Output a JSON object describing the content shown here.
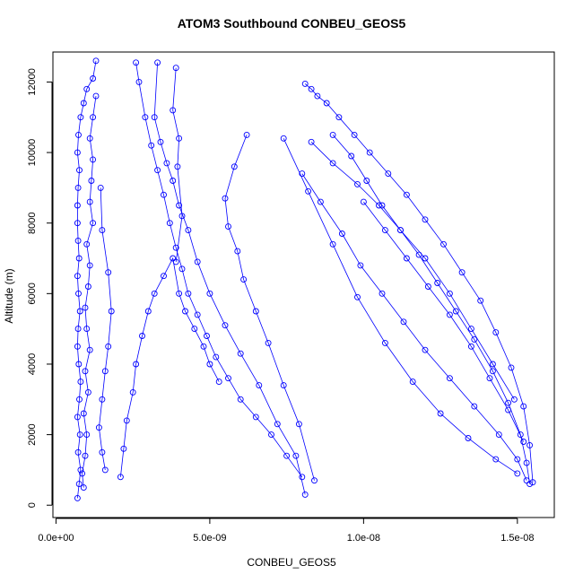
{
  "chart_data": {
    "type": "line",
    "title": "ATOM3 Southbound CONBEU_GEOS5",
    "xlabel": "CONBEU_GEOS5",
    "ylabel": "Altitude (m)",
    "xlim": [
      -1e-10,
      1.62e-08
    ],
    "ylim": [
      -350,
      12850
    ],
    "x_ticks": [
      0,
      5e-09,
      1e-08,
      1.5e-08
    ],
    "x_tick_labels": [
      "0.0e+00",
      "5.0e-09",
      "1.0e-08",
      "1.5e-08"
    ],
    "y_ticks": [
      0,
      2000,
      4000,
      6000,
      8000,
      10000,
      12000
    ],
    "y_tick_labels": [
      "0",
      "2000",
      "4000",
      "6000",
      "8000",
      "10000",
      "12000"
    ],
    "line_color": "#0000ff",
    "marker": "open-circle",
    "series": [
      {
        "x": [
          7e-10,
          7.5e-10,
          8e-10,
          7.2e-10,
          7.8e-10,
          7e-10,
          7.6e-10,
          8e-10,
          7.4e-10,
          7e-10,
          7.2e-10,
          7.8e-10,
          7.3e-10,
          7e-10,
          7.5e-10,
          7.2e-10,
          7e-10,
          7e-10,
          7.2e-10,
          7.6e-10,
          7e-10,
          7.3e-10,
          8e-10,
          9e-10,
          1e-09,
          1.2e-09,
          1.3e-09
        ],
        "y": [
          200,
          600,
          1000,
          1500,
          2000,
          2500,
          3000,
          3500,
          4000,
          4500,
          5000,
          5500,
          6000,
          6500,
          7000,
          7500,
          8000,
          8500,
          9000,
          9500,
          10000,
          10500,
          11000,
          11400,
          11800,
          12100,
          12600
        ]
      },
      {
        "x": [
          9e-10,
          8.5e-10,
          9.5e-10,
          1e-09,
          9e-10,
          1.05e-09,
          9.5e-10,
          1.1e-09,
          1e-09,
          9.5e-10,
          1.05e-09,
          1.1e-09,
          1e-09,
          1.2e-09,
          1.1e-09,
          1.15e-09,
          1.2e-09,
          1.1e-09,
          1.2e-09,
          1.3e-09
        ],
        "y": [
          500,
          900,
          1400,
          2000,
          2600,
          3200,
          3800,
          4400,
          5000,
          5600,
          6200,
          6800,
          7400,
          8000,
          8600,
          9200,
          9800,
          10400,
          11000,
          11600
        ]
      },
      {
        "x": [
          1.6e-09,
          1.5e-09,
          1.4e-09,
          1.5e-09,
          1.6e-09,
          1.7e-09,
          1.8e-09,
          1.7e-09,
          1.5e-09,
          1.45e-09
        ],
        "y": [
          1000,
          1500,
          2200,
          3000,
          3800,
          4500,
          5500,
          6600,
          7800,
          9000
        ]
      },
      {
        "x": [
          2.1e-09,
          2.2e-09,
          2.3e-09,
          2.5e-09,
          2.6e-09,
          2.8e-09,
          3e-09,
          3.2e-09,
          3.5e-09,
          3.8e-09,
          4e-09,
          4.2e-09,
          4.5e-09,
          4.8e-09,
          5e-09,
          5.3e-09
        ],
        "y": [
          800,
          1600,
          2400,
          3200,
          4000,
          4800,
          5500,
          6000,
          6500,
          7000,
          6000,
          5500,
          5000,
          4500,
          4000,
          3500
        ]
      },
      {
        "x": [
          2.6e-09,
          2.7e-09,
          2.9e-09,
          3.1e-09,
          3.3e-09,
          3.5e-09,
          3.7e-09,
          3.9e-09,
          4.1e-09,
          4.3e-09,
          4.6e-09,
          4.9e-09,
          5.2e-09,
          5.6e-09,
          6e-09,
          6.5e-09,
          7e-09,
          7.5e-09,
          8e-09
        ],
        "y": [
          12550,
          12000,
          11000,
          10200,
          9500,
          8800,
          8000,
          7300,
          6700,
          6000,
          5400,
          4800,
          4200,
          3600,
          3000,
          2500,
          2000,
          1400,
          800
        ]
      },
      {
        "x": [
          3.3e-09,
          3.2e-09,
          3.4e-09,
          3.6e-09,
          3.8e-09,
          4e-09,
          4.3e-09,
          4.6e-09,
          5e-09,
          5.5e-09,
          6e-09,
          6.6e-09,
          7.2e-09,
          7.8e-09,
          8.1e-09
        ],
        "y": [
          12550,
          11000,
          10300,
          9700,
          9200,
          8500,
          7800,
          6900,
          6000,
          5100,
          4300,
          3400,
          2300,
          1400,
          300
        ]
      },
      {
        "x": [
          3.9e-09,
          3.8e-09,
          4e-09,
          3.95e-09,
          4.1e-09,
          3.9e-09
        ],
        "y": [
          12400,
          11200,
          10400,
          9600,
          8200,
          6900
        ]
      },
      {
        "x": [
          6.2e-09,
          5.8e-09,
          5.5e-09,
          5.6e-09,
          5.9e-09,
          6.1e-09,
          6.5e-09,
          6.9e-09,
          7.4e-09,
          7.9e-09,
          8.4e-09
        ],
        "y": [
          10500,
          9600,
          8700,
          7900,
          7200,
          6400,
          5500,
          4600,
          3400,
          2300,
          700
        ]
      },
      {
        "x": [
          8.1e-09,
          8.3e-09,
          8.5e-09,
          8.8e-09,
          9.2e-09,
          9.7e-09,
          1.02e-08,
          1.08e-08,
          1.14e-08,
          1.2e-08,
          1.26e-08,
          1.32e-08,
          1.38e-08,
          1.43e-08,
          1.48e-08,
          1.52e-08,
          1.54e-08,
          1.55e-08
        ],
        "y": [
          11950,
          11800,
          11600,
          11400,
          11000,
          10500,
          10000,
          9400,
          8800,
          8100,
          7400,
          6600,
          5800,
          4900,
          3900,
          2800,
          1700,
          650
        ]
      },
      {
        "x": [
          9e-09,
          9.6e-09,
          1.01e-08,
          1.06e-08,
          1.12e-08,
          1.18e-08,
          1.24e-08,
          1.3e-08,
          1.36e-08,
          1.42e-08,
          1.47e-08,
          1.51e-08,
          1.53e-08,
          1.54e-08
        ],
        "y": [
          10500,
          9900,
          9200,
          8500,
          7800,
          7100,
          6300,
          5500,
          4700,
          3800,
          2900,
          2000,
          1200,
          600
        ]
      },
      {
        "x": [
          8e-09,
          8.6e-09,
          9.3e-09,
          9.9e-09,
          1.06e-08,
          1.13e-08,
          1.2e-08,
          1.28e-08,
          1.36e-08,
          1.44e-08,
          1.5e-08,
          1.53e-08
        ],
        "y": [
          9400,
          8600,
          7700,
          6800,
          6000,
          5200,
          4400,
          3600,
          2800,
          2000,
          1300,
          700
        ]
      },
      {
        "x": [
          7.4e-09,
          8.2e-09,
          9e-09,
          9.8e-09,
          1.07e-08,
          1.16e-08,
          1.25e-08,
          1.34e-08,
          1.43e-08,
          1.5e-08
        ],
        "y": [
          10400,
          8900,
          7400,
          5900,
          4600,
          3500,
          2600,
          1900,
          1300,
          900
        ]
      },
      {
        "x": [
          1.49e-08,
          1.42e-08,
          1.35e-08,
          1.28e-08,
          1.2e-08,
          1.12e-08,
          1.05e-08,
          9.8e-09,
          9e-09,
          8.3e-09
        ],
        "y": [
          3000,
          4000,
          5000,
          6000,
          7000,
          7800,
          8500,
          9100,
          9700,
          10300
        ]
      },
      {
        "x": [
          1.52e-08,
          1.47e-08,
          1.41e-08,
          1.35e-08,
          1.28e-08,
          1.21e-08,
          1.14e-08,
          1.07e-08,
          1e-08
        ],
        "y": [
          1800,
          2700,
          3600,
          4500,
          5400,
          6200,
          7000,
          7800,
          8600
        ]
      }
    ]
  }
}
